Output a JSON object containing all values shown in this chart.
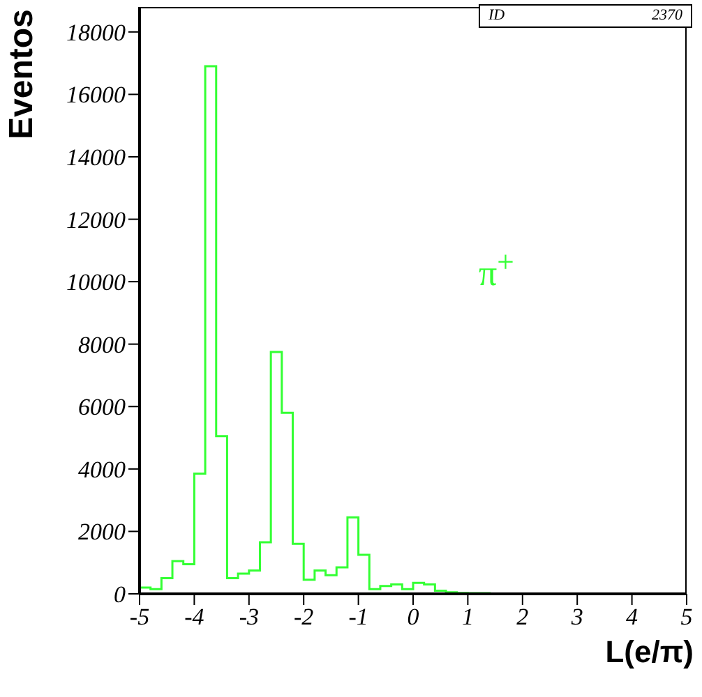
{
  "chart_data": {
    "type": "histogram",
    "xlabel": "L(e/π)",
    "ylabel": "Eventos",
    "annotations": [
      "ID",
      "2370",
      "π$^{+}$"
    ],
    "bins": [
      -5,
      -4.8,
      -4.6,
      -4.4,
      -4.2,
      -4,
      -3.8,
      -3.6,
      -3.4,
      -3.2,
      -3,
      -2.8,
      -2.6,
      -2.4,
      -2.2,
      -2,
      -1.8,
      -1.6,
      -1.4,
      -1.2,
      -1,
      -0.8,
      -0.6,
      -0.4,
      -0.2,
      0,
      0.2,
      0.4,
      0.6,
      0.8,
      1,
      1.2,
      1.4,
      1.6,
      1.8,
      2,
      2.2,
      2.4,
      2.6,
      2.8,
      3,
      3.2,
      3.4,
      3.6,
      3.8,
      4,
      4.2,
      4.4,
      4.6,
      4.8,
      5
    ],
    "values": [
      200,
      150,
      500,
      1050,
      950,
      3850,
      16900,
      5050,
      500,
      650,
      750,
      1650,
      7750,
      5800,
      1600,
      450,
      750,
      600,
      850,
      2450,
      1250,
      150,
      250,
      300,
      150,
      350,
      300,
      100,
      50,
      30,
      20,
      20,
      10,
      10,
      10,
      10,
      10,
      10,
      10,
      10,
      0,
      0,
      0,
      0,
      0,
      0,
      0,
      0,
      0,
      0
    ],
    "color": "#33ff33",
    "xlim": [
      -5,
      5
    ],
    "ylim": [
      0,
      18800
    ],
    "xticks": [
      -5,
      -4,
      -3,
      -2,
      -1,
      0,
      1,
      2,
      3,
      4,
      5
    ],
    "yticks": [
      0,
      2000,
      4000,
      6000,
      8000,
      10000,
      12000,
      14000,
      16000,
      18000
    ],
    "grid": false
  }
}
